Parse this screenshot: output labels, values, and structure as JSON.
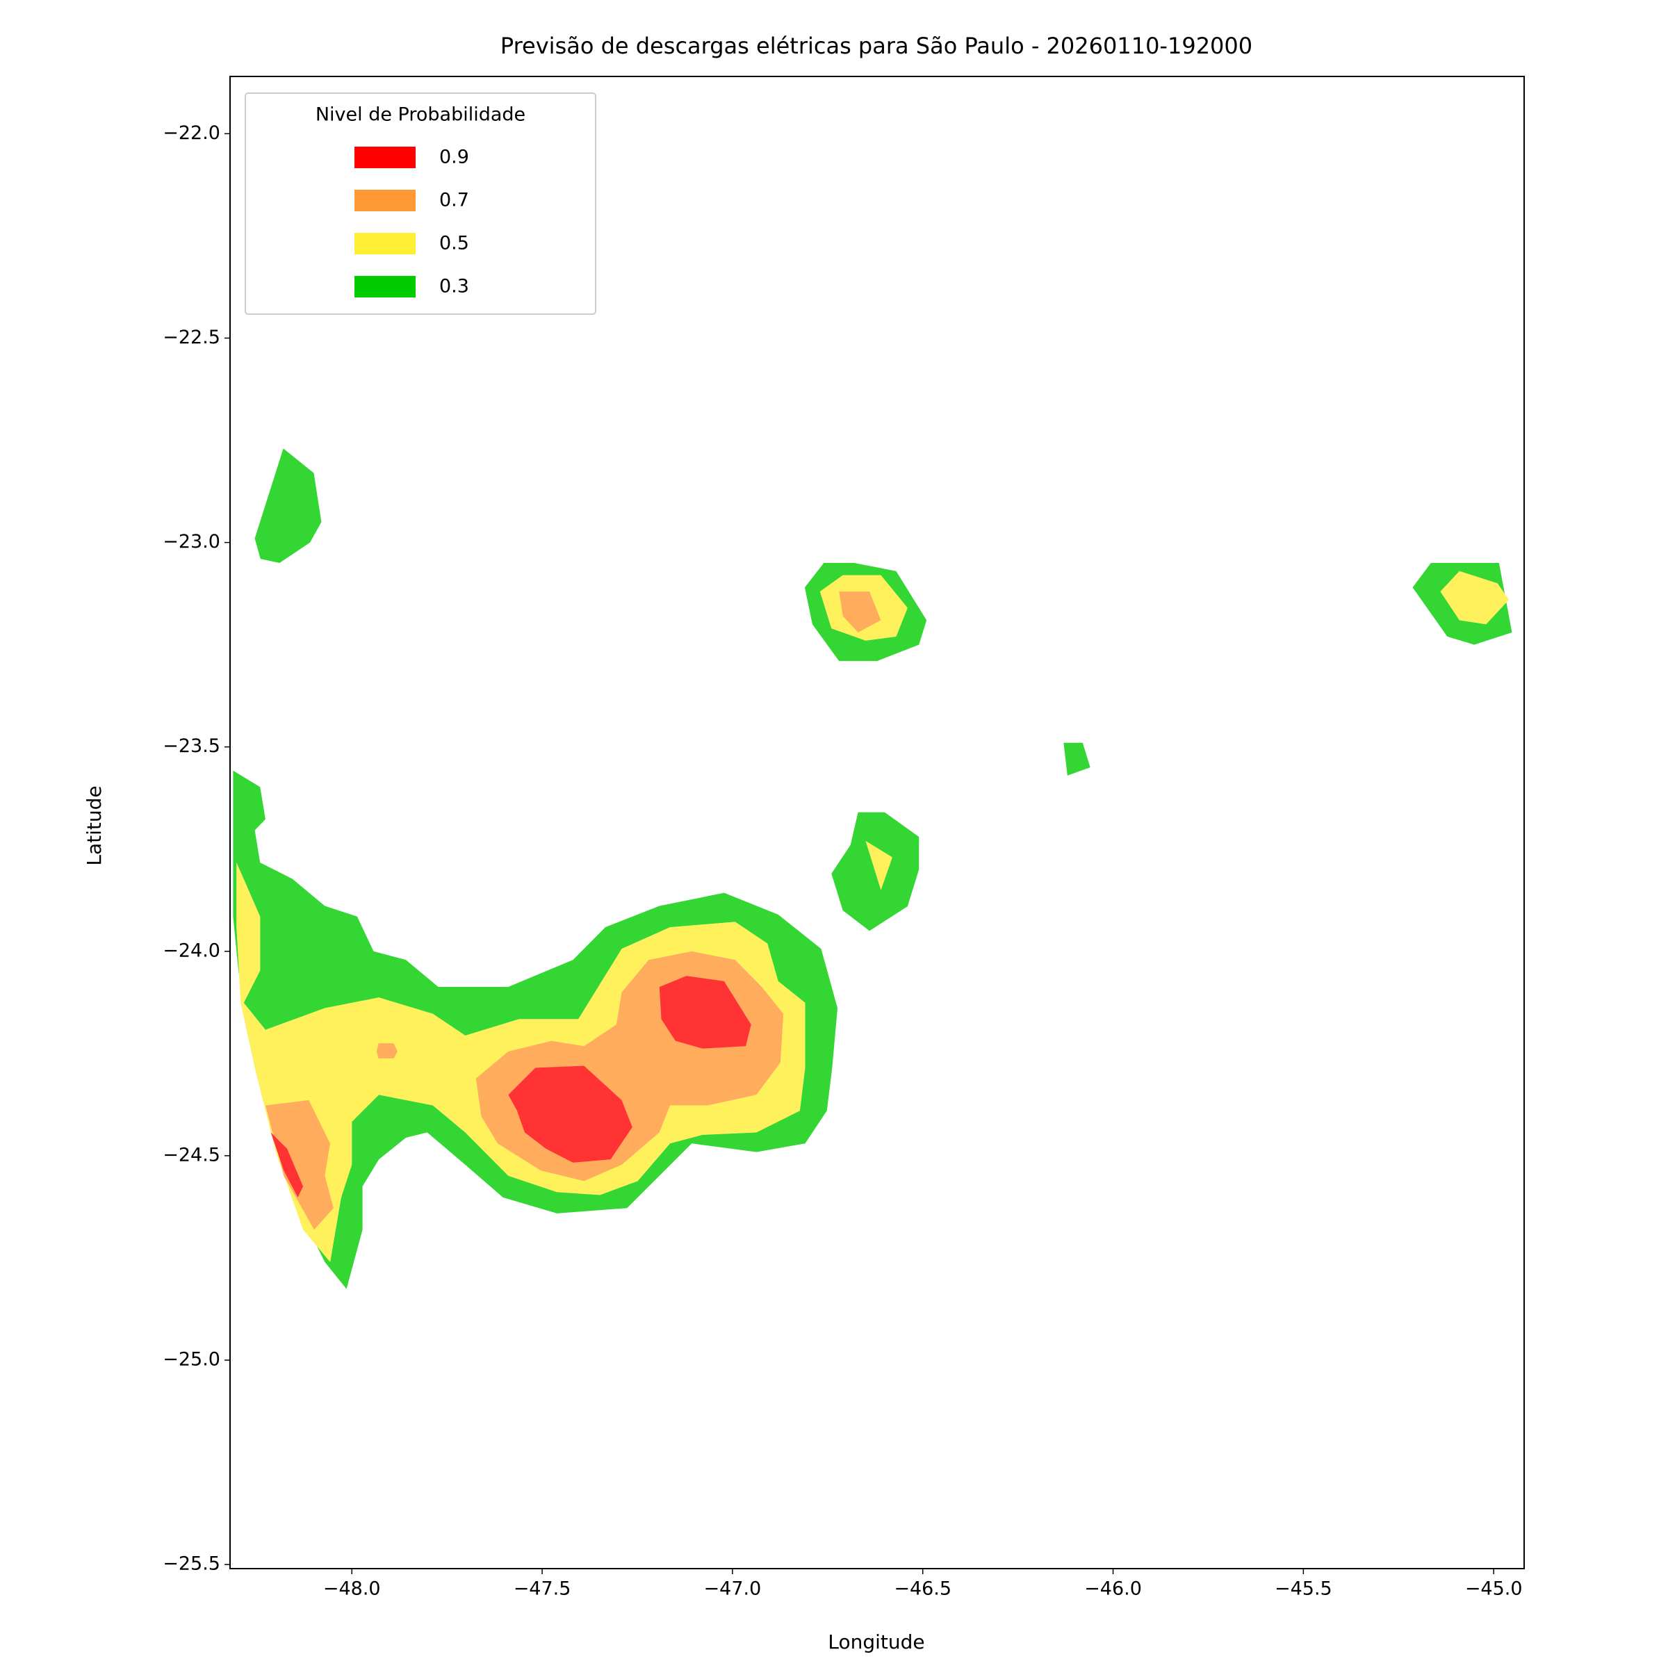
{
  "chart_data": {
    "type": "contourf",
    "title": "Previsão de descargas elétricas para São Paulo - 20260110-192000",
    "x_label": "Longitude",
    "y_label": "Latitude",
    "xlim": [
      -48.32,
      -44.92
    ],
    "ylim": [
      -25.51,
      -21.86
    ],
    "xticks": [
      {
        "value": -48,
        "label": "−48.0"
      },
      {
        "value": -47.5,
        "label": "−47.5"
      },
      {
        "value": -47,
        "label": "−47.0"
      },
      {
        "value": -46.5,
        "label": "−46.5"
      },
      {
        "value": -46,
        "label": "−46.0"
      },
      {
        "value": -45.5,
        "label": "−45.5"
      },
      {
        "value": -45,
        "label": "−45.0"
      }
    ],
    "yticks": [
      {
        "value": -22,
        "label": "−22.0"
      },
      {
        "value": -22.5,
        "label": "−22.5"
      },
      {
        "value": -23,
        "label": "−23.0"
      },
      {
        "value": -23.5,
        "label": "−23.5"
      },
      {
        "value": -24,
        "label": "−24.0"
      },
      {
        "value": -24.5,
        "label": "−24.5"
      },
      {
        "value": -25,
        "label": "−25.0"
      },
      {
        "value": -25.5,
        "label": "−25.5"
      }
    ],
    "legend_title": "Nivel de Probabilidade",
    "legend_loc": "upper left",
    "alpha": 0.8,
    "levels": [
      {
        "value": 0.9,
        "color": "#ff0000"
      },
      {
        "value": 0.7,
        "color": "#ff9933"
      },
      {
        "value": 0.5,
        "color": "#ffee33"
      },
      {
        "value": 0.3,
        "color": "#00cc00"
      }
    ],
    "regions": [
      {
        "level": 0.3,
        "points": [
          [
            -48.255,
            -22.99
          ],
          [
            -48.18,
            -22.77
          ],
          [
            -48.1,
            -22.83
          ],
          [
            -48.08,
            -22.95
          ],
          [
            -48.11,
            -23.0
          ],
          [
            -48.19,
            -23.05
          ],
          [
            -48.24,
            -23.04
          ]
        ]
      },
      {
        "level": 0.3,
        "points": [
          [
            -46.81,
            -23.11
          ],
          [
            -46.76,
            -23.05
          ],
          [
            -46.68,
            -23.05
          ],
          [
            -46.57,
            -23.07
          ],
          [
            -46.49,
            -23.19
          ],
          [
            -46.51,
            -23.25
          ],
          [
            -46.62,
            -23.29
          ],
          [
            -46.72,
            -23.29
          ],
          [
            -46.79,
            -23.2
          ]
        ]
      },
      {
        "level": 0.3,
        "points": [
          [
            -45.213,
            -23.11
          ],
          [
            -45.165,
            -23.05
          ],
          [
            -44.986,
            -23.05
          ],
          [
            -44.952,
            -23.22
          ],
          [
            -45.051,
            -23.25
          ],
          [
            -45.122,
            -23.23
          ]
        ]
      },
      {
        "level": 0.3,
        "points": [
          [
            -46.13,
            -23.49
          ],
          [
            -46.08,
            -23.49
          ],
          [
            -46.06,
            -23.55
          ],
          [
            -46.12,
            -23.57
          ]
        ]
      },
      {
        "level": 0.3,
        "points": [
          [
            -46.67,
            -23.66
          ],
          [
            -46.6,
            -23.66
          ],
          [
            -46.51,
            -23.72
          ],
          [
            -46.51,
            -23.8
          ],
          [
            -46.54,
            -23.89
          ],
          [
            -46.64,
            -23.95
          ],
          [
            -46.71,
            -23.9
          ],
          [
            -46.74,
            -23.81
          ],
          [
            -46.69,
            -23.74
          ]
        ]
      },
      {
        "level": 0.3,
        "points": [
          [
            -48.312,
            -23.558
          ],
          [
            -48.241,
            -23.598
          ],
          [
            -48.227,
            -23.677
          ],
          [
            -48.255,
            -23.704
          ],
          [
            -48.241,
            -23.783
          ],
          [
            -48.156,
            -23.823
          ],
          [
            -48.071,
            -23.889
          ],
          [
            -47.986,
            -23.915
          ],
          [
            -47.943,
            -24.0
          ],
          [
            -47.858,
            -24.021
          ],
          [
            -47.773,
            -24.087
          ],
          [
            -47.589,
            -24.087
          ],
          [
            -47.419,
            -24.021
          ],
          [
            -47.334,
            -23.941
          ],
          [
            -47.192,
            -23.889
          ],
          [
            -47.022,
            -23.857
          ],
          [
            -46.88,
            -23.91
          ],
          [
            -46.767,
            -23.994
          ],
          [
            -46.724,
            -24.139
          ],
          [
            -46.738,
            -24.285
          ],
          [
            -46.752,
            -24.39
          ],
          [
            -46.809,
            -24.47
          ],
          [
            -46.937,
            -24.491
          ],
          [
            -47.107,
            -24.47
          ],
          [
            -47.178,
            -24.536
          ],
          [
            -47.277,
            -24.628
          ],
          [
            -47.461,
            -24.641
          ],
          [
            -47.603,
            -24.602
          ],
          [
            -47.702,
            -24.522
          ],
          [
            -47.802,
            -24.443
          ],
          [
            -47.858,
            -24.456
          ],
          [
            -47.929,
            -24.509
          ],
          [
            -47.972,
            -24.575
          ],
          [
            -47.972,
            -24.681
          ],
          [
            -48.014,
            -24.826
          ],
          [
            -48.071,
            -24.76
          ],
          [
            -48.156,
            -24.602
          ],
          [
            -48.218,
            -24.417
          ],
          [
            -48.269,
            -24.205
          ],
          [
            -48.298,
            -24.047
          ],
          [
            -48.312,
            -23.915
          ]
        ]
      },
      {
        "level": 0.5,
        "points": [
          [
            -46.77,
            -23.12
          ],
          [
            -46.71,
            -23.08
          ],
          [
            -46.61,
            -23.08
          ],
          [
            -46.54,
            -23.16
          ],
          [
            -46.57,
            -23.23
          ],
          [
            -46.65,
            -23.24
          ],
          [
            -46.74,
            -23.21
          ]
        ]
      },
      {
        "level": 0.5,
        "points": [
          [
            -45.14,
            -23.12
          ],
          [
            -45.09,
            -23.07
          ],
          [
            -44.99,
            -23.1
          ],
          [
            -44.96,
            -23.14
          ],
          [
            -45.02,
            -23.2
          ],
          [
            -45.09,
            -23.19
          ]
        ]
      },
      {
        "level": 0.5,
        "points": [
          [
            -46.65,
            -23.73
          ],
          [
            -46.58,
            -23.77
          ],
          [
            -46.61,
            -23.85
          ]
        ]
      },
      {
        "level": 0.5,
        "points": [
          [
            -48.303,
            -23.783
          ],
          [
            -48.241,
            -23.915
          ],
          [
            -48.241,
            -24.047
          ],
          [
            -48.284,
            -24.126
          ],
          [
            -48.227,
            -24.192
          ],
          [
            -48.071,
            -24.139
          ],
          [
            -47.929,
            -24.113
          ],
          [
            -47.787,
            -24.153
          ],
          [
            -47.702,
            -24.206
          ],
          [
            -47.561,
            -24.166
          ],
          [
            -47.405,
            -24.166
          ],
          [
            -47.291,
            -23.994
          ],
          [
            -47.164,
            -23.941
          ],
          [
            -46.993,
            -23.928
          ],
          [
            -46.908,
            -23.981
          ],
          [
            -46.88,
            -24.073
          ],
          [
            -46.809,
            -24.126
          ],
          [
            -46.809,
            -24.285
          ],
          [
            -46.823,
            -24.39
          ],
          [
            -46.937,
            -24.443
          ],
          [
            -47.079,
            -24.449
          ],
          [
            -47.164,
            -24.47
          ],
          [
            -47.249,
            -24.562
          ],
          [
            -47.348,
            -24.596
          ],
          [
            -47.461,
            -24.589
          ],
          [
            -47.589,
            -24.549
          ],
          [
            -47.702,
            -24.443
          ],
          [
            -47.787,
            -24.377
          ],
          [
            -47.929,
            -24.351
          ],
          [
            -48.0,
            -24.417
          ],
          [
            -48.0,
            -24.522
          ],
          [
            -48.028,
            -24.602
          ],
          [
            -48.057,
            -24.76
          ],
          [
            -48.128,
            -24.681
          ],
          [
            -48.198,
            -24.496
          ],
          [
            -48.255,
            -24.285
          ],
          [
            -48.292,
            -24.126
          ],
          [
            -48.303,
            -23.941
          ]
        ]
      },
      {
        "level": 0.7,
        "points": [
          [
            -46.72,
            -23.12
          ],
          [
            -46.64,
            -23.12
          ],
          [
            -46.61,
            -23.19
          ],
          [
            -46.67,
            -23.22
          ],
          [
            -46.71,
            -23.18
          ]
        ]
      },
      {
        "level": 0.7,
        "points": [
          [
            -47.674,
            -24.311
          ],
          [
            -47.589,
            -24.245
          ],
          [
            -47.475,
            -24.219
          ],
          [
            -47.39,
            -24.232
          ],
          [
            -47.305,
            -24.179
          ],
          [
            -47.291,
            -24.1
          ],
          [
            -47.22,
            -24.021
          ],
          [
            -47.107,
            -24.0
          ],
          [
            -46.993,
            -24.021
          ],
          [
            -46.923,
            -24.087
          ],
          [
            -46.866,
            -24.153
          ],
          [
            -46.874,
            -24.272
          ],
          [
            -46.937,
            -24.351
          ],
          [
            -47.064,
            -24.377
          ],
          [
            -47.164,
            -24.377
          ],
          [
            -47.192,
            -24.443
          ],
          [
            -47.291,
            -24.522
          ],
          [
            -47.39,
            -24.562
          ],
          [
            -47.504,
            -24.536
          ],
          [
            -47.617,
            -24.47
          ],
          [
            -47.66,
            -24.404
          ]
        ]
      },
      {
        "level": 0.7,
        "points": [
          [
            -48.227,
            -24.377
          ],
          [
            -48.113,
            -24.364
          ],
          [
            -48.057,
            -24.47
          ],
          [
            -48.071,
            -24.549
          ],
          [
            -48.048,
            -24.628
          ],
          [
            -48.099,
            -24.681
          ],
          [
            -48.179,
            -24.549
          ]
        ]
      },
      {
        "level": 0.7,
        "points": [
          [
            -47.93,
            -24.225
          ],
          [
            -47.89,
            -24.225
          ],
          [
            -47.88,
            -24.245
          ],
          [
            -47.89,
            -24.262
          ],
          [
            -47.93,
            -24.262
          ],
          [
            -47.935,
            -24.245
          ]
        ]
      },
      {
        "level": 0.9,
        "points": [
          [
            -47.192,
            -24.087
          ],
          [
            -47.121,
            -24.06
          ],
          [
            -47.022,
            -24.073
          ],
          [
            -46.951,
            -24.179
          ],
          [
            -46.965,
            -24.232
          ],
          [
            -47.079,
            -24.238
          ],
          [
            -47.15,
            -24.219
          ],
          [
            -47.187,
            -24.166
          ]
        ]
      },
      {
        "level": 0.9,
        "points": [
          [
            -47.589,
            -24.351
          ],
          [
            -47.518,
            -24.285
          ],
          [
            -47.39,
            -24.28
          ],
          [
            -47.291,
            -24.364
          ],
          [
            -47.263,
            -24.43
          ],
          [
            -47.32,
            -24.509
          ],
          [
            -47.419,
            -24.517
          ],
          [
            -47.49,
            -24.483
          ],
          [
            -47.546,
            -24.443
          ],
          [
            -47.566,
            -24.39
          ]
        ]
      },
      {
        "level": 0.9,
        "points": [
          [
            -48.213,
            -24.443
          ],
          [
            -48.17,
            -24.483
          ],
          [
            -48.128,
            -24.575
          ],
          [
            -48.142,
            -24.602
          ],
          [
            -48.179,
            -24.536
          ]
        ]
      }
    ]
  }
}
